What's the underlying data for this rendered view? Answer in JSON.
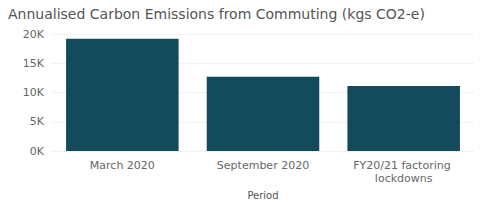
{
  "chart_data": {
    "type": "bar",
    "title": "Annualised Carbon Emissions from Commuting (kgs CO2-e)",
    "x_label": "Period",
    "categories": [
      "March 2020",
      "September 2020",
      "FY20/21 factoring lockdowns"
    ],
    "values": [
      19200,
      12700,
      11100
    ],
    "color": "#134b5d",
    "ylim": [
      0,
      20000
    ],
    "yticks": [
      {
        "value": 0,
        "label": "0K"
      },
      {
        "value": 5000,
        "label": "5K"
      },
      {
        "value": 10000,
        "label": "10K"
      },
      {
        "value": 15000,
        "label": "15K"
      },
      {
        "value": 20000,
        "label": "20K"
      }
    ],
    "grid": true
  }
}
